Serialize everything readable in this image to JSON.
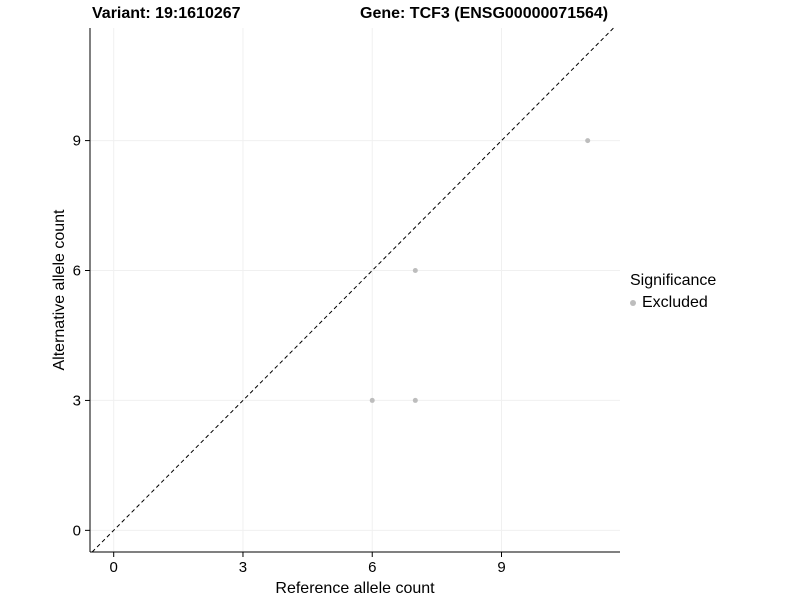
{
  "chart_data": {
    "type": "scatter",
    "title_left": "Variant: 19:1610267",
    "title_right": "Gene: TCF3 (ENSG00000071564)",
    "xlabel": "Reference allele count",
    "ylabel": "Alternative allele count",
    "xlim": [
      -0.55,
      11.75
    ],
    "ylim": [
      -0.5,
      11.6
    ],
    "xticks": [
      0,
      3,
      6,
      9
    ],
    "yticks": [
      0,
      3,
      6,
      9
    ],
    "grid": true,
    "grid_color": "#f0f0f0",
    "axis_color": "#000000",
    "identity_line": {
      "style": "dashed",
      "color": "#000000",
      "equation": "y = x"
    },
    "series": [
      {
        "name": "Excluded",
        "color": "#bdbdbd",
        "points": [
          {
            "x": 6,
            "y": 3
          },
          {
            "x": 7,
            "y": 3
          },
          {
            "x": 7,
            "y": 6
          },
          {
            "x": 11,
            "y": 9
          }
        ]
      }
    ],
    "legend": {
      "title": "Significance",
      "position": "right",
      "entries": [
        {
          "label": "Excluded",
          "color": "#bdbdbd"
        }
      ]
    }
  }
}
